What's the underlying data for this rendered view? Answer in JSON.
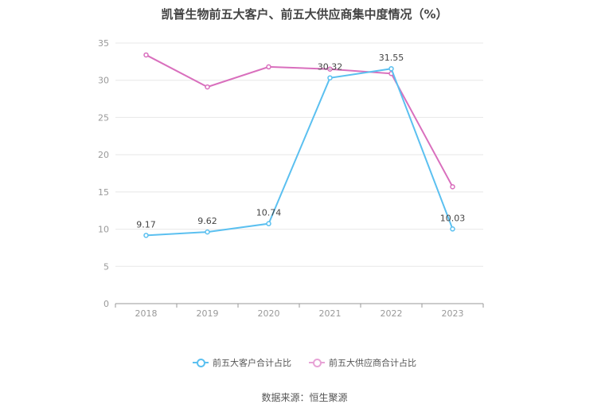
{
  "title": "凯普生物前五大客户、前五大供应商集中度情况（%）",
  "source": "数据来源：恒生聚源",
  "colors": {
    "series0": "#5bc0f0",
    "series1": "#d96fbd",
    "axis": "#999999",
    "grid": "#e8e8e8"
  },
  "chart_data": {
    "type": "line",
    "title": "凯普生物前五大客户、前五大供应商集中度情况（%）",
    "categories": [
      "2018",
      "2019",
      "2020",
      "2021",
      "2022",
      "2023"
    ],
    "ylim": [
      0,
      35
    ],
    "yticks": [
      "0",
      "5",
      "10",
      "15",
      "20",
      "25",
      "30",
      "35"
    ],
    "grid": true,
    "legend_position": "bottom",
    "series": [
      {
        "name": "前五大客户合计占比",
        "values": [
          9.17,
          9.62,
          10.74,
          30.32,
          31.55,
          10.03
        ],
        "labels": [
          "9.17",
          "9.62",
          "10.74",
          "30.32",
          "31.55",
          "10.03"
        ]
      },
      {
        "name": "前五大供应商合计占比",
        "values": [
          33.4,
          29.1,
          31.8,
          31.5,
          30.9,
          15.7
        ]
      }
    ]
  }
}
